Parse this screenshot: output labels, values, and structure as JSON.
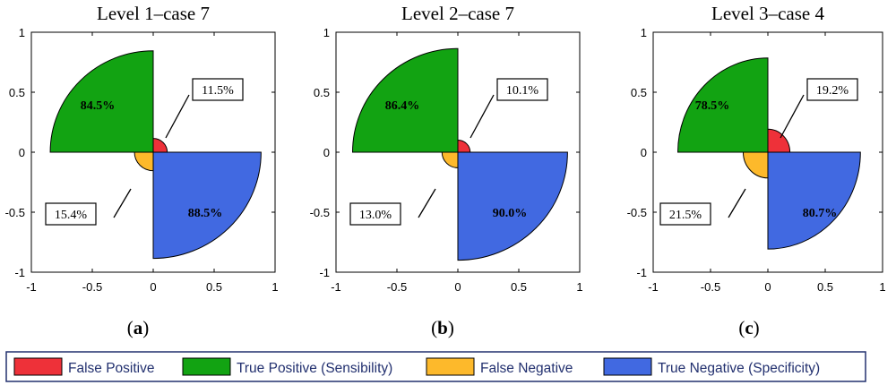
{
  "figure": {
    "colors": {
      "false_positive": "#ee3139",
      "true_positive": "#12a312",
      "false_negative": "#fdb92b",
      "true_negative": "#4169e1"
    },
    "legend": [
      {
        "key": "false_positive",
        "label": "False Positive"
      },
      {
        "key": "true_positive",
        "label": "True Positive (Sensibility)"
      },
      {
        "key": "false_negative",
        "label": "False Negative"
      },
      {
        "key": "true_negative",
        "label": "True Negative (Specificity)"
      }
    ]
  },
  "chart_data": [
    {
      "type": "polar-quadrant",
      "title": "Level 1–case 7",
      "caption_letter": "a",
      "xlim": [
        -1,
        1
      ],
      "ylim": [
        -1,
        1
      ],
      "xticks": [
        -1,
        -0.5,
        0,
        0.5,
        1
      ],
      "yticks": [
        -1,
        -0.5,
        0,
        0.5,
        1
      ],
      "xtick_labels": [
        "-1",
        "-0.5",
        "0",
        "0.5",
        "1"
      ],
      "ytick_labels": [
        "1",
        "0.5",
        "0",
        "-0.5",
        "-1"
      ],
      "values": {
        "false_positive": 0.115,
        "true_positive": 0.845,
        "false_negative": 0.154,
        "true_negative": 0.885
      },
      "labels": {
        "false_positive": "11.5%",
        "true_positive": "84.5%",
        "false_negative": "15.4%",
        "true_negative": "88.5%"
      }
    },
    {
      "type": "polar-quadrant",
      "title": "Level 2–case 7",
      "caption_letter": "b",
      "xlim": [
        -1,
        1
      ],
      "ylim": [
        -1,
        1
      ],
      "xticks": [
        -1,
        -0.5,
        0,
        0.5,
        1
      ],
      "yticks": [
        -1,
        -0.5,
        0,
        0.5,
        1
      ],
      "xtick_labels": [
        "-1",
        "-0.5",
        "0",
        "0.5",
        "1"
      ],
      "ytick_labels": [
        "1",
        "0.5",
        "0",
        "-0.5",
        "-1"
      ],
      "values": {
        "false_positive": 0.101,
        "true_positive": 0.864,
        "false_negative": 0.13,
        "true_negative": 0.9
      },
      "labels": {
        "false_positive": "10.1%",
        "true_positive": "86.4%",
        "false_negative": "13.0%",
        "true_negative": "90.0%"
      }
    },
    {
      "type": "polar-quadrant",
      "title": "Level 3–case 4",
      "caption_letter": "c",
      "xlim": [
        -1,
        1
      ],
      "ylim": [
        -1,
        1
      ],
      "xticks": [
        -1,
        -0.5,
        0,
        0.5,
        1
      ],
      "yticks": [
        -1,
        -0.5,
        0,
        0.5,
        1
      ],
      "xtick_labels": [
        "-1",
        "-0.5",
        "0",
        "0.5",
        "1"
      ],
      "ytick_labels": [
        "1",
        "0.5",
        "0",
        "-0.5",
        "-1"
      ],
      "values": {
        "false_positive": 0.192,
        "true_positive": 0.785,
        "false_negative": 0.215,
        "true_negative": 0.807
      },
      "labels": {
        "false_positive": "19.2%",
        "true_positive": "78.5%",
        "false_negative": "21.5%",
        "true_negative": "80.7%"
      }
    }
  ]
}
